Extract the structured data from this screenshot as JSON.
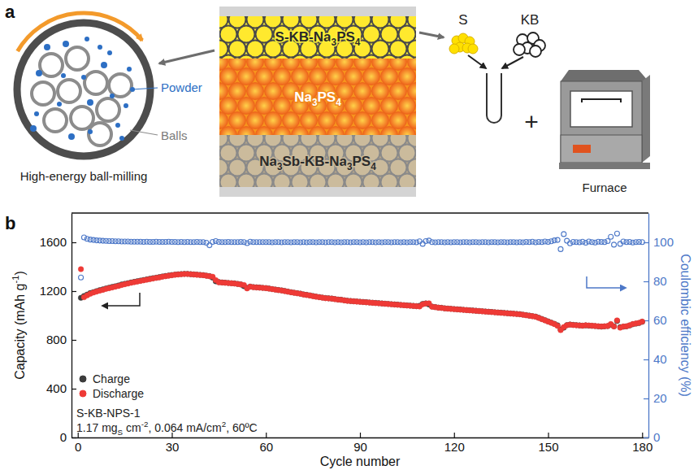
{
  "diagram": {
    "panel_label": "a",
    "ball_mill": {
      "powder": "Powder",
      "balls": "Balls",
      "caption": "High-energy ball-milling"
    },
    "layers": [
      "S-KB-Na3PS4",
      "Na3PS4",
      "Na3Sb-KB-Na3PS4"
    ],
    "precursors": [
      "S",
      "KB"
    ],
    "operator": "+",
    "furnace": "Furnace"
  },
  "chart_panel_label": "b",
  "chart_data": {
    "type": "scatter",
    "x_label": "Cycle number",
    "y_label": "Capacity (mAh g-1)",
    "y2_label": "Coulombic efficiency (%)",
    "annotations": [
      "S-KB-NPS-1",
      "1.17 mgS cm-2, 0.064 mA/cm2, 60ºC"
    ],
    "legend": "lower left",
    "xlim": [
      -2,
      182
    ],
    "xticks": [
      0,
      30,
      60,
      90,
      120,
      150,
      180
    ],
    "ylim": [
      0,
      1840
    ],
    "yticks": [
      0,
      400,
      800,
      1200,
      1600
    ],
    "y2lim": [
      0,
      115
    ],
    "y2ticks": [
      0,
      20,
      40,
      60,
      80,
      100
    ],
    "x": [
      1,
      2,
      3,
      4,
      5,
      6,
      7,
      8,
      9,
      10,
      11,
      12,
      13,
      14,
      15,
      16,
      17,
      18,
      19,
      20,
      21,
      22,
      23,
      24,
      25,
      26,
      27,
      28,
      29,
      30,
      31,
      32,
      33,
      34,
      35,
      36,
      37,
      38,
      39,
      40,
      41,
      42,
      43,
      44,
      45,
      46,
      47,
      48,
      49,
      50,
      51,
      52,
      53,
      54,
      55,
      56,
      57,
      58,
      59,
      60,
      61,
      62,
      63,
      64,
      65,
      66,
      67,
      68,
      69,
      70,
      71,
      72,
      73,
      74,
      75,
      76,
      77,
      78,
      79,
      80,
      81,
      82,
      83,
      84,
      85,
      86,
      87,
      88,
      89,
      90,
      91,
      92,
      93,
      94,
      95,
      96,
      97,
      98,
      99,
      100,
      101,
      102,
      103,
      104,
      105,
      106,
      107,
      108,
      109,
      110,
      111,
      112,
      113,
      114,
      115,
      116,
      117,
      118,
      119,
      120,
      121,
      122,
      123,
      124,
      125,
      126,
      127,
      128,
      129,
      130,
      131,
      132,
      133,
      134,
      135,
      136,
      137,
      138,
      139,
      140,
      141,
      142,
      143,
      144,
      145,
      146,
      147,
      148,
      149,
      150,
      151,
      152,
      153,
      154,
      155,
      156,
      157,
      158,
      159,
      160,
      161,
      162,
      163,
      164,
      165,
      166,
      167,
      168,
      169,
      170,
      171,
      172,
      173,
      174,
      175,
      176,
      177,
      178,
      179,
      180
    ],
    "series": [
      {
        "name": "Charge",
        "color": "#3c3c3c",
        "marker": "circle",
        "values": [
          1145,
          1160,
          1172,
          1184,
          1192,
          1200,
          1208,
          1214,
          1222,
          1228,
          1234,
          1240,
          1246,
          1254,
          1260,
          1265,
          1271,
          1276,
          1281,
          1286,
          1291,
          1296,
          1301,
          1306,
          1310,
          1315,
          1320,
          1324,
          1328,
          1332,
          1335,
          1338,
          1340,
          1341,
          1341,
          1339,
          1337,
          1335,
          1333,
          1331,
          1327,
          1323,
          1310,
          1280,
          1274,
          1271,
          1269,
          1267,
          1265,
          1263,
          1259,
          1255,
          1240,
          1226,
          1237,
          1233,
          1231,
          1229,
          1227,
          1225,
          1221,
          1217,
          1213,
          1209,
          1206,
          1201,
          1196,
          1191,
          1187,
          1183,
          1179,
          1173,
          1169,
          1165,
          1160,
          1155,
          1151,
          1147,
          1143,
          1141,
          1139,
          1135,
          1131,
          1129,
          1125,
          1121,
          1119,
          1117,
          1115,
          1113,
          1111,
          1109,
          1107,
          1105,
          1103,
          1101,
          1099,
          1097,
          1095,
          1093,
          1091,
          1089,
          1087,
          1085,
          1083,
          1081,
          1079,
          1077,
          1080,
          1095,
          1099,
          1090,
          1073,
          1069,
          1065,
          1063,
          1059,
          1057,
          1055,
          1053,
          1051,
          1049,
          1047,
          1045,
          1043,
          1041,
          1039,
          1037,
          1035,
          1033,
          1031,
          1029,
          1027,
          1025,
          1023,
          1021,
          1019,
          1017,
          1015,
          1013,
          1011,
          1007,
          1003,
          999,
          995,
          991,
          982,
          972,
          962,
          952,
          942,
          932,
          920,
          885,
          900,
          921,
          926,
          923,
          921,
          919,
          917,
          919,
          917,
          915,
          913,
          911,
          909,
          911,
          913,
          925,
          912,
          955,
          905,
          908,
          911,
          918,
          928,
          933,
          938,
          948
        ]
      },
      {
        "name": "Discharge",
        "color": "#ee3a36",
        "marker": "circle",
        "values": [
          1380,
          1150,
          1165,
          1178,
          1188,
          1196,
          1203,
          1210,
          1218,
          1224,
          1230,
          1236,
          1242,
          1250,
          1256,
          1262,
          1268,
          1273,
          1278,
          1283,
          1288,
          1293,
          1298,
          1303,
          1308,
          1312,
          1318,
          1322,
          1326,
          1330,
          1334,
          1336,
          1338,
          1340,
          1340,
          1338,
          1336,
          1334,
          1332,
          1330,
          1326,
          1322,
          1318,
          1290,
          1272,
          1270,
          1268,
          1266,
          1264,
          1262,
          1258,
          1254,
          1250,
          1222,
          1236,
          1232,
          1230,
          1228,
          1226,
          1224,
          1220,
          1216,
          1212,
          1208,
          1205,
          1200,
          1195,
          1190,
          1186,
          1182,
          1178,
          1172,
          1168,
          1164,
          1158,
          1154,
          1150,
          1146,
          1142,
          1140,
          1138,
          1134,
          1130,
          1128,
          1124,
          1120,
          1118,
          1116,
          1114,
          1112,
          1110,
          1108,
          1106,
          1104,
          1102,
          1100,
          1098,
          1096,
          1094,
          1092,
          1090,
          1088,
          1086,
          1084,
          1082,
          1080,
          1078,
          1076,
          1074,
          1092,
          1098,
          1100,
          1072,
          1068,
          1064,
          1062,
          1058,
          1056,
          1054,
          1052,
          1050,
          1048,
          1046,
          1044,
          1042,
          1040,
          1038,
          1036,
          1034,
          1032,
          1030,
          1028,
          1026,
          1024,
          1022,
          1020,
          1018,
          1016,
          1014,
          1012,
          1010,
          1006,
          1002,
          998,
          994,
          990,
          980,
          970,
          960,
          950,
          940,
          930,
          915,
          880,
          905,
          920,
          925,
          922,
          920,
          918,
          916,
          920,
          918,
          916,
          914,
          912,
          910,
          912,
          914,
          930,
          910,
          960,
          900,
          910,
          912,
          920,
          930,
          935,
          940,
          950
        ]
      },
      {
        "color": "#4d78c8",
        "marker": "open_circle",
        "axis": "y2",
        "values": [
          82,
          102.5,
          101.8,
          101.4,
          101.2,
          101,
          100.9,
          100.8,
          100.7,
          100.6,
          100.6,
          100.5,
          100.5,
          100.4,
          100.4,
          100.4,
          100.3,
          100.3,
          100.3,
          100.3,
          100.2,
          100.3,
          100.2,
          100.2,
          100.3,
          100.2,
          100.2,
          100.2,
          100.3,
          100.2,
          100.2,
          100.1,
          100.2,
          100.1,
          100.2,
          100.1,
          100.1,
          100.2,
          100.1,
          100.1,
          99.8,
          98.5,
          100.2,
          100.6,
          100.2,
          100.1,
          100.1,
          100.2,
          100.1,
          100.1,
          100.1,
          100.2,
          100.1,
          99.6,
          100.3,
          100.1,
          100.1,
          100.1,
          100.1,
          100.1,
          100.1,
          100,
          100.1,
          100.1,
          100,
          100.1,
          100.1,
          100,
          100.1,
          100.1,
          100,
          100.1,
          100,
          100.1,
          100.1,
          100,
          100.1,
          100.1,
          100,
          100.1,
          100.1,
          100,
          100.1,
          100,
          100.1,
          100.1,
          100,
          100.1,
          100.1,
          100,
          100.1,
          100,
          100.1,
          100.1,
          100,
          100.1,
          100,
          100.1,
          100.1,
          100,
          100.1,
          100.1,
          100,
          100.1,
          100,
          100.1,
          100.1,
          100,
          100.5,
          99.2,
          100.6,
          100.9,
          100.1,
          100,
          100.1,
          100.1,
          100,
          100.1,
          100,
          100.1,
          100.1,
          100,
          100.1,
          100.1,
          100,
          100.1,
          100.1,
          100,
          100.1,
          100.1,
          100,
          100.1,
          100.1,
          100,
          100.1,
          100.1,
          100,
          100.1,
          100.1,
          100,
          100.1,
          100,
          100.2,
          100.1,
          100.3,
          100,
          100.2,
          100.1,
          100.4,
          100.2,
          100.5,
          101,
          101.2,
          96.5,
          104.2,
          100.8,
          99.5,
          100.2,
          100.1,
          100,
          100.3,
          99.8,
          100.4,
          100.1,
          99.9,
          100.3,
          100.2,
          100.1,
          100.6,
          102.8,
          98.8,
          104.5,
          99.2,
          100.4,
          100.1,
          100.2,
          99.9,
          100.1,
          100.2,
          100.1
        ]
      }
    ]
  }
}
